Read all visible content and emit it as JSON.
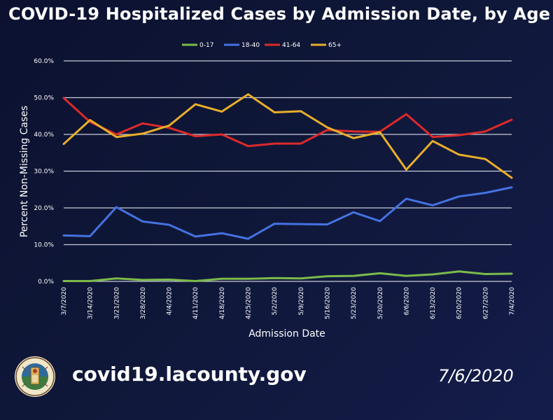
{
  "header": {
    "title": "COVID-19 Hospitalized Cases by Admission Date, by Age"
  },
  "footer": {
    "url": "covid19.lacounty.gov",
    "date": "7/6/2020"
  },
  "chart_data": {
    "type": "line",
    "title": "COVID-19 Hospitalized Cases by Admission Date, by Age",
    "xlabel": "Admission Date",
    "ylabel": "Percent Non-Missing Cases",
    "ylim": [
      0,
      60
    ],
    "yticks": [
      0,
      10,
      20,
      30,
      40,
      50,
      60
    ],
    "ytick_labels": [
      "0.0%",
      "10.0%",
      "20.0%",
      "30.0%",
      "40.0%",
      "50.0%",
      "60.0%"
    ],
    "grid": true,
    "legend_position": "top-center",
    "categories": [
      "3/7/2020",
      "3/14/2020",
      "3/21/2020",
      "3/28/2020",
      "4/4/2020",
      "4/11/2020",
      "4/18/2020",
      "4/25/2020",
      "5/2/2020",
      "5/9/2020",
      "5/16/2020",
      "5/23/2020",
      "5/30/2020",
      "6/6/2020",
      "6/13/2020",
      "6/20/2020",
      "6/27/2020",
      "7/4/2020"
    ],
    "series": [
      {
        "name": "0-17",
        "color": "#7cba4a",
        "values": [
          0.1,
          0.1,
          0.8,
          0.4,
          0.5,
          0.1,
          0.7,
          0.7,
          0.9,
          0.8,
          1.4,
          1.5,
          2.2,
          1.5,
          1.9,
          2.7,
          2.0,
          2.1
        ]
      },
      {
        "name": "18-40",
        "color": "#4472e0",
        "values": [
          12.5,
          12.3,
          20.2,
          16.3,
          15.4,
          12.2,
          13.1,
          11.6,
          15.7,
          15.6,
          15.5,
          18.8,
          16.4,
          22.5,
          20.7,
          23.1,
          24.1,
          25.6
        ]
      },
      {
        "name": "41-64",
        "color": "#dc2a2a",
        "values": [
          49.9,
          43.4,
          40.0,
          43.0,
          41.8,
          39.5,
          40.0,
          36.8,
          37.5,
          37.5,
          41.2,
          40.8,
          40.7,
          45.5,
          39.3,
          39.8,
          40.8,
          44.0
        ]
      },
      {
        "name": "65+",
        "color": "#e8ae2a",
        "values": [
          37.4,
          43.9,
          39.3,
          40.2,
          42.4,
          48.2,
          46.2,
          50.9,
          46.0,
          46.3,
          41.9,
          39.0,
          40.6,
          30.4,
          38.2,
          34.5,
          33.3,
          28.2
        ]
      }
    ]
  }
}
